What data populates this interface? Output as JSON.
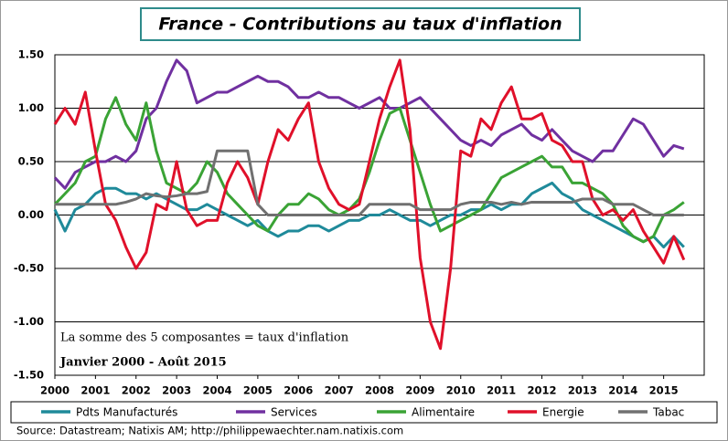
{
  "chart_data": {
    "type": "line",
    "title": "France - Contributions au taux d'inflation",
    "annotations": [
      "La somme des 5 composantes = taux d'inflation",
      "Janvier 2000 - Août 2015"
    ],
    "source": "Source: Datastream; Natixis AM; http://philippewaechter.nam.natixis.com",
    "x": [
      2000,
      2000.25,
      2000.5,
      2000.75,
      2001,
      2001.25,
      2001.5,
      2001.75,
      2002,
      2002.25,
      2002.5,
      2002.75,
      2003,
      2003.25,
      2003.5,
      2003.75,
      2004,
      2004.25,
      2004.5,
      2004.75,
      2005,
      2005.25,
      2005.5,
      2005.75,
      2006,
      2006.25,
      2006.5,
      2006.75,
      2007,
      2007.25,
      2007.5,
      2007.75,
      2008,
      2008.25,
      2008.5,
      2008.75,
      2009,
      2009.25,
      2009.5,
      2009.75,
      2010,
      2010.25,
      2010.5,
      2010.75,
      2011,
      2011.25,
      2011.5,
      2011.75,
      2012,
      2012.25,
      2012.5,
      2012.75,
      2013,
      2013.25,
      2013.5,
      2013.75,
      2014,
      2014.25,
      2014.5,
      2014.75,
      2015,
      2015.25,
      2015.5
    ],
    "xlim": [
      2000,
      2016
    ],
    "xticks": [
      2000,
      2001,
      2002,
      2003,
      2004,
      2005,
      2006,
      2007,
      2008,
      2009,
      2010,
      2011,
      2012,
      2013,
      2014,
      2015
    ],
    "ylim": [
      -1.5,
      1.5
    ],
    "yticks": [
      {
        "value": -1.5,
        "label": "-1.50"
      },
      {
        "value": -1,
        "label": "-1.00"
      },
      {
        "value": -0.5,
        "label": "-0.50"
      },
      {
        "value": 0,
        "label": "0.00"
      },
      {
        "value": 0.5,
        "label": "0.50"
      },
      {
        "value": 1,
        "label": "1.00"
      },
      {
        "value": 1.5,
        "label": "1.50"
      }
    ],
    "grid": true,
    "series": [
      {
        "name": "Pdts Manufacturés",
        "color": "#1f8a9a",
        "values": [
          0.05,
          -0.15,
          0.05,
          0.1,
          0.2,
          0.25,
          0.25,
          0.2,
          0.2,
          0.15,
          0.2,
          0.15,
          0.1,
          0.05,
          0.05,
          0.1,
          0.05,
          0.0,
          -0.05,
          -0.1,
          -0.05,
          -0.15,
          -0.2,
          -0.15,
          -0.15,
          -0.1,
          -0.1,
          -0.15,
          -0.1,
          -0.05,
          -0.05,
          0.0,
          0.0,
          0.05,
          0.0,
          -0.05,
          -0.05,
          -0.1,
          -0.05,
          0.0,
          0.0,
          0.05,
          0.05,
          0.1,
          0.05,
          0.1,
          0.1,
          0.2,
          0.25,
          0.3,
          0.2,
          0.15,
          0.05,
          0.0,
          -0.05,
          -0.1,
          -0.15,
          -0.2,
          -0.25,
          -0.2,
          -0.3,
          -0.2,
          -0.3
        ]
      },
      {
        "name": "Services",
        "color": "#7030a0",
        "values": [
          0.35,
          0.25,
          0.4,
          0.45,
          0.5,
          0.5,
          0.55,
          0.5,
          0.6,
          0.9,
          1.0,
          1.25,
          1.45,
          1.35,
          1.05,
          1.1,
          1.15,
          1.15,
          1.2,
          1.25,
          1.3,
          1.25,
          1.25,
          1.2,
          1.1,
          1.1,
          1.15,
          1.1,
          1.1,
          1.05,
          1.0,
          1.05,
          1.1,
          1.0,
          1.0,
          1.05,
          1.1,
          1.0,
          0.9,
          0.8,
          0.7,
          0.65,
          0.7,
          0.65,
          0.75,
          0.8,
          0.85,
          0.75,
          0.7,
          0.8,
          0.7,
          0.6,
          0.55,
          0.5,
          0.6,
          0.6,
          0.75,
          0.9,
          0.85,
          0.7,
          0.55,
          0.65,
          0.62
        ]
      },
      {
        "name": "Alimentaire",
        "color": "#3aa335",
        "values": [
          0.1,
          0.2,
          0.3,
          0.5,
          0.55,
          0.9,
          1.1,
          0.85,
          0.7,
          1.05,
          0.6,
          0.3,
          0.25,
          0.2,
          0.3,
          0.5,
          0.4,
          0.2,
          0.1,
          0.0,
          -0.1,
          -0.15,
          0.0,
          0.1,
          0.1,
          0.2,
          0.15,
          0.05,
          0.0,
          0.05,
          0.15,
          0.4,
          0.7,
          0.95,
          1.0,
          0.7,
          0.4,
          0.1,
          -0.15,
          -0.1,
          -0.05,
          0.0,
          0.05,
          0.2,
          0.35,
          0.4,
          0.45,
          0.5,
          0.55,
          0.45,
          0.45,
          0.3,
          0.3,
          0.25,
          0.2,
          0.1,
          -0.1,
          -0.2,
          -0.25,
          -0.2,
          0.0,
          0.05,
          0.12
        ]
      },
      {
        "name": "Energie",
        "color": "#e0102a",
        "values": [
          0.85,
          1.0,
          0.85,
          1.15,
          0.6,
          0.1,
          -0.05,
          -0.3,
          -0.5,
          -0.35,
          0.1,
          0.05,
          0.5,
          0.05,
          -0.1,
          -0.05,
          -0.05,
          0.3,
          0.5,
          0.35,
          0.1,
          0.5,
          0.8,
          0.7,
          0.9,
          1.05,
          0.5,
          0.25,
          0.1,
          0.05,
          0.1,
          0.5,
          0.9,
          1.2,
          1.45,
          0.8,
          -0.4,
          -1.0,
          -1.25,
          -0.5,
          0.6,
          0.55,
          0.9,
          0.8,
          1.05,
          1.2,
          0.9,
          0.9,
          0.95,
          0.7,
          0.65,
          0.5,
          0.5,
          0.15,
          0.0,
          0.05,
          -0.05,
          0.05,
          -0.15,
          -0.3,
          -0.45,
          -0.2,
          -0.42
        ]
      },
      {
        "name": "Tabac",
        "color": "#707070",
        "values": [
          0.1,
          0.1,
          0.1,
          0.1,
          0.1,
          0.1,
          0.1,
          0.12,
          0.15,
          0.2,
          0.18,
          0.17,
          0.18,
          0.2,
          0.2,
          0.22,
          0.6,
          0.6,
          0.6,
          0.6,
          0.1,
          0.0,
          0.0,
          0.0,
          0.0,
          0.0,
          0.0,
          0.0,
          0.0,
          0.0,
          0.0,
          0.1,
          0.1,
          0.1,
          0.1,
          0.1,
          0.05,
          0.05,
          0.05,
          0.05,
          0.1,
          0.12,
          0.12,
          0.12,
          0.1,
          0.12,
          0.1,
          0.12,
          0.12,
          0.12,
          0.12,
          0.12,
          0.15,
          0.15,
          0.15,
          0.1,
          0.1,
          0.1,
          0.05,
          0.0,
          0.0,
          0.0,
          0.0
        ]
      }
    ]
  }
}
